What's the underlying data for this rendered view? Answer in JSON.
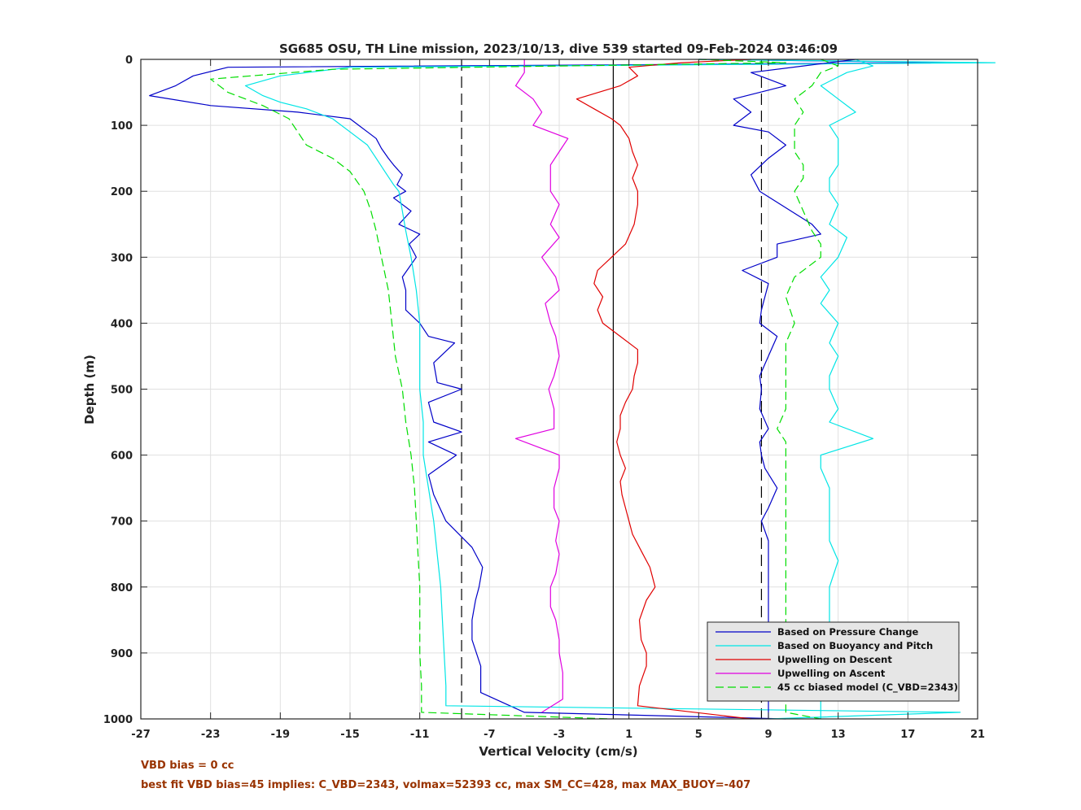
{
  "chart_data": {
    "type": "line",
    "title": "SG685 OSU, TH Line mission, 2023/10/13, dive 539 started 09-Feb-2024 03:46:09",
    "xlabel": "Vertical Velocity (cm/s)",
    "ylabel": "Depth (m)",
    "xlim": [
      -27,
      21
    ],
    "ylim": [
      0,
      1000
    ],
    "y_reversed": true,
    "grid": true,
    "x_ticks": [
      -27,
      -23,
      -19,
      -15,
      -11,
      -7,
      -3,
      1,
      5,
      9,
      13,
      17,
      21
    ],
    "y_ticks": [
      0,
      100,
      200,
      300,
      400,
      500,
      600,
      700,
      800,
      900,
      1000
    ],
    "reference_lines": [
      {
        "x": -8.6,
        "style": "dashed",
        "color": "#000000"
      },
      {
        "x": 0.1,
        "style": "solid",
        "color": "#000000"
      },
      {
        "x": 8.6,
        "style": "dashed",
        "color": "#000000"
      }
    ],
    "legend_position": "bottom-right",
    "series": [
      {
        "name": "Based on Pressure Change",
        "color": "#0000c8",
        "dash": false,
        "depth": [
          0,
          5,
          12,
          25,
          40,
          55,
          70,
          80,
          90,
          100,
          110,
          120,
          135,
          150,
          160,
          175,
          190,
          200,
          210,
          230,
          250,
          265,
          280,
          300,
          330,
          350,
          380,
          400,
          420,
          430,
          460,
          490,
          500,
          520,
          550,
          565,
          580,
          600,
          630,
          660,
          700,
          740,
          770,
          800,
          820,
          850,
          880,
          920,
          960,
          990,
          1000
        ],
        "velocity": [
          5,
          20,
          -22,
          -24,
          -25,
          -26.5,
          -23,
          -18,
          -15,
          -14.5,
          -14,
          -13.5,
          -13.2,
          -12.8,
          -12.5,
          -12,
          -12.3,
          -11.8,
          -12.5,
          -11.5,
          -12.2,
          -11,
          -11.6,
          -11.2,
          -12,
          -11.8,
          -11.8,
          -11,
          -10.5,
          -9,
          -10.2,
          -10,
          -8.6,
          -10.5,
          -10.2,
          -8.6,
          -10.5,
          -8.9,
          -10.5,
          -10.2,
          -9.5,
          -8,
          -7.4,
          -7.6,
          -7.8,
          -8,
          -8,
          -7.5,
          -7.5,
          -5,
          10
        ]
      },
      {
        "name": "Based on Buoyancy and Pitch",
        "color": "#00e5e5",
        "dash": false,
        "depth": [
          0,
          5,
          12,
          25,
          40,
          55,
          65,
          75,
          90,
          110,
          130,
          150,
          170,
          190,
          200,
          230,
          260,
          300,
          350,
          400,
          450,
          500,
          550,
          600,
          650,
          700,
          750,
          800,
          850,
          900,
          950,
          980,
          990,
          1000
        ],
        "velocity": [
          5,
          22,
          -15,
          -19,
          -21,
          -20,
          -19,
          -17.5,
          -16,
          -15,
          -14,
          -13.5,
          -13,
          -12.5,
          -12.2,
          -12,
          -11.8,
          -11.5,
          -11.2,
          -11,
          -11,
          -11,
          -10.8,
          -10.8,
          -10.5,
          -10.2,
          -10,
          -9.8,
          -9.7,
          -9.6,
          -9.5,
          -9.5,
          20,
          9
        ]
      },
      {
        "name": "Upwelling on Descent",
        "color": "#e00000",
        "dash": false,
        "depth": [
          0,
          5,
          12,
          25,
          40,
          60,
          75,
          90,
          100,
          120,
          140,
          160,
          180,
          200,
          220,
          250,
          280,
          300,
          320,
          340,
          360,
          380,
          400,
          420,
          440,
          460,
          480,
          500,
          520,
          540,
          560,
          580,
          600,
          620,
          640,
          660,
          680,
          700,
          720,
          750,
          770,
          800,
          820,
          850,
          880,
          900,
          920,
          950,
          980,
          1000
        ],
        "velocity": [
          8,
          4,
          1,
          1.5,
          0.5,
          -2,
          -1,
          0,
          0.5,
          1,
          1.2,
          1.5,
          1.2,
          1.5,
          1.5,
          1.3,
          0.8,
          0,
          -0.8,
          -1,
          -0.5,
          -0.8,
          -0.5,
          0.5,
          1.5,
          1.5,
          1.3,
          1.2,
          0.8,
          0.5,
          0.5,
          0.3,
          0.5,
          0.8,
          0.5,
          0.6,
          0.8,
          1,
          1.2,
          1.8,
          2.2,
          2.5,
          2,
          1.6,
          1.7,
          2,
          2,
          1.6,
          1.5,
          8
        ]
      },
      {
        "name": "Upwelling on Ascent",
        "color": "#e000e0",
        "dash": false,
        "depth": [
          0,
          20,
          40,
          60,
          80,
          100,
          120,
          140,
          160,
          180,
          200,
          220,
          250,
          270,
          300,
          330,
          350,
          370,
          400,
          420,
          450,
          480,
          500,
          530,
          560,
          575,
          600,
          620,
          650,
          680,
          700,
          730,
          750,
          780,
          800,
          830,
          850,
          880,
          900,
          930,
          950,
          970,
          990
        ],
        "velocity": [
          -5,
          -5,
          -5.5,
          -4.5,
          -4,
          -4.5,
          -2.5,
          -3,
          -3.5,
          -3.5,
          -3.5,
          -3,
          -3.5,
          -3,
          -4,
          -3.2,
          -3,
          -3.8,
          -3.5,
          -3.2,
          -3,
          -3.3,
          -3.6,
          -3.3,
          -3.3,
          -5.5,
          -3,
          -3,
          -3.3,
          -3.3,
          -3,
          -3.2,
          -3,
          -3.2,
          -3.5,
          -3.5,
          -3.2,
          -3,
          -3,
          -2.8,
          -2.8,
          -2.8,
          -4
        ]
      },
      {
        "name": "45 cc biased model (C_VBD=2343)",
        "color": "#00dd00",
        "dash": true,
        "depth": [
          0,
          5,
          15,
          30,
          50,
          70,
          90,
          110,
          130,
          150,
          170,
          200,
          230,
          260,
          300,
          350,
          400,
          450,
          500,
          550,
          600,
          650,
          700,
          750,
          800,
          850,
          900,
          950,
          990,
          1000
        ],
        "velocity": [
          5,
          10,
          -16,
          -23,
          -22,
          -20,
          -18.5,
          -18,
          -17.5,
          -16,
          -15,
          -14.2,
          -13.8,
          -13.5,
          -13.2,
          -12.8,
          -12.6,
          -12.4,
          -12,
          -11.8,
          -11.5,
          -11.3,
          -11.2,
          -11.1,
          -11,
          -11,
          -11,
          -10.9,
          -10.9,
          0
        ]
      },
      {
        "name": "",
        "color": "#0000c8",
        "dash": false,
        "depth": [
          0,
          10,
          20,
          40,
          60,
          80,
          100,
          110,
          130,
          150,
          175,
          200,
          225,
          250,
          265,
          280,
          300,
          320,
          340,
          380,
          400,
          420,
          450,
          480,
          500,
          530,
          560,
          580,
          600,
          620,
          650,
          680,
          700,
          730,
          760,
          800,
          820,
          850,
          880,
          900,
          930,
          960,
          990,
          1000
        ],
        "velocity": [
          14,
          11,
          8,
          10,
          7,
          8,
          7,
          9,
          10,
          9,
          8,
          8.5,
          10,
          11.5,
          12,
          9.5,
          9.5,
          7.5,
          9,
          8.6,
          8.5,
          9.5,
          9,
          8.5,
          8.6,
          8.5,
          9,
          8.5,
          8.6,
          8.8,
          9.5,
          9,
          8.6,
          9,
          9,
          9,
          9,
          9,
          9,
          9,
          9,
          9,
          9,
          9
        ]
      },
      {
        "name": "",
        "color": "#00e5e5",
        "dash": false,
        "depth": [
          0,
          10,
          20,
          40,
          60,
          80,
          100,
          120,
          140,
          160,
          180,
          200,
          220,
          250,
          270,
          300,
          330,
          350,
          370,
          400,
          430,
          450,
          480,
          500,
          530,
          550,
          575,
          600,
          620,
          650,
          680,
          700,
          730,
          760,
          800,
          830,
          860,
          900,
          930,
          960,
          990,
          1000
        ],
        "velocity": [
          14,
          15,
          13.5,
          12,
          13,
          14,
          12.5,
          13,
          13,
          13,
          12.5,
          12.5,
          13,
          12.5,
          13.5,
          13,
          12,
          12.5,
          12,
          13,
          12.5,
          13,
          12.5,
          12.5,
          13,
          12.5,
          15,
          12,
          12,
          12.5,
          12.5,
          12.5,
          12.5,
          13,
          12.5,
          12.5,
          12.5,
          12.3,
          12,
          12,
          12,
          12
        ]
      },
      {
        "name": "",
        "color": "#00dd00",
        "dash": true,
        "depth": [
          0,
          10,
          20,
          40,
          60,
          80,
          100,
          120,
          140,
          160,
          180,
          200,
          230,
          260,
          280,
          300,
          330,
          360,
          400,
          430,
          460,
          500,
          530,
          560,
          580,
          600,
          650,
          700,
          750,
          800,
          850,
          900,
          950,
          990,
          1000
        ],
        "velocity": [
          12,
          13,
          12,
          11.5,
          10.5,
          11,
          10.5,
          10.5,
          10.5,
          11,
          11,
          10.5,
          11,
          11.5,
          12,
          12,
          10.5,
          10,
          10.5,
          10,
          10,
          10,
          10,
          9.5,
          10,
          10,
          10,
          10,
          10,
          10,
          10,
          10,
          10,
          10,
          12
        ]
      }
    ]
  },
  "footnotes": {
    "vbd_bias": "VBD bias = 0 cc",
    "best_fit": "best fit VBD bias=45 implies: C_VBD=2343, volmax=52393 cc, max SM_CC=428, max MAX_BUOY=-407"
  }
}
